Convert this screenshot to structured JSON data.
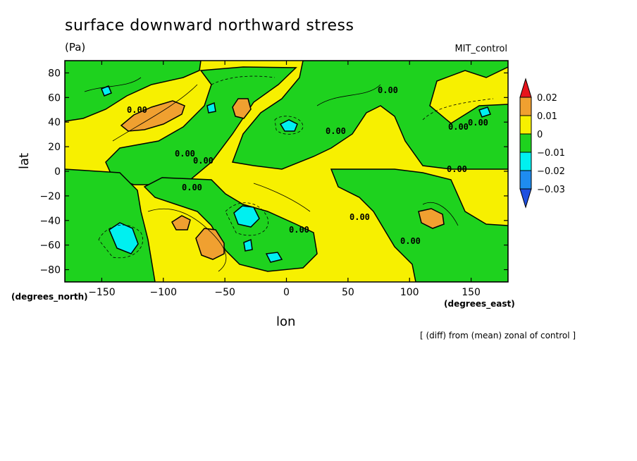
{
  "chart_data": {
    "type": "heatmap",
    "title": "surface downward northward stress",
    "units": "(Pa)",
    "run_label": "MIT_control",
    "xlabel": "lon",
    "ylabel": "lat",
    "x_unit_label": "(degrees_east)",
    "y_unit_label": "(degrees_north)",
    "footnote": "[ (diff) from (mean) zonal of control ]",
    "xlim": [
      -180,
      180
    ],
    "ylim": [
      -90,
      90
    ],
    "x_ticks": [
      -150,
      -100,
      -50,
      0,
      50,
      100,
      150
    ],
    "x_tick_labels": [
      "−150",
      "−100",
      "−50",
      "0",
      "50",
      "100",
      "150"
    ],
    "y_ticks": [
      80,
      60,
      40,
      20,
      0,
      -20,
      -40,
      -60,
      -80
    ],
    "y_tick_labels": [
      "80",
      "60",
      "40",
      "20",
      "0",
      "−20",
      "−40",
      "−60",
      "−80"
    ],
    "colorbar": {
      "levels": [
        0.02,
        0.01,
        0,
        -0.01,
        -0.02,
        -0.03
      ],
      "level_labels": [
        "0.02",
        "0.01",
        "0",
        "−0.01",
        "−0.02",
        "−0.03"
      ],
      "colors": [
        "#e8141c",
        "#f0a030",
        "#f7f000",
        "#1ed21e",
        "#00f0f0",
        "#1e8cf0",
        "#1e50e0"
      ]
    },
    "contour_labels": [
      "0.00",
      "0.00",
      "0.00",
      "0.00",
      "0.00",
      "0.00",
      "0.00",
      "0.00",
      "0.00",
      "0.00",
      "0.00",
      "0.00"
    ]
  }
}
